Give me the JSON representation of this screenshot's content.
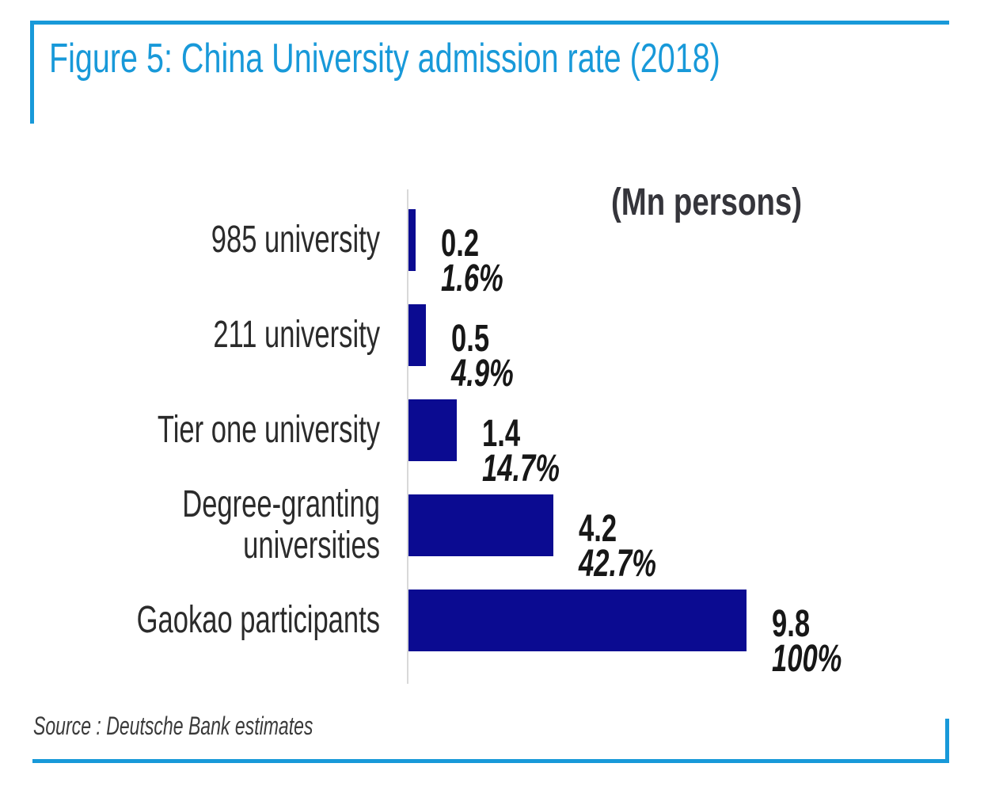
{
  "figure": {
    "title": "Figure 5: China University admission rate (2018)",
    "source_note": "Source : Deutsche Bank estimates",
    "accent_color": "#1899d9"
  },
  "chart_data": {
    "type": "bar",
    "orientation": "horizontal",
    "title": "Figure 5: China University admission rate (2018)",
    "unit_label": "(Mn persons)",
    "unit": "Mn persons",
    "categories": [
      "985 university",
      "211 university",
      "Tier one university",
      "Degree-granting universities",
      "Gaokao participants"
    ],
    "values": [
      0.2,
      0.5,
      1.4,
      4.2,
      9.8
    ],
    "value_labels": [
      "0.2",
      "0.5",
      "1.4",
      "4.2",
      "9.8"
    ],
    "percent_labels": [
      "1.6%",
      "4.9%",
      "14.7%",
      "42.7%",
      "100%"
    ],
    "xlim": [
      0,
      10
    ],
    "grid": false,
    "legend": "none",
    "value_label_position": "right-of-bar",
    "bar_color": "#0b0b91",
    "axis_color": "#d9d9d9",
    "text_color": "#2b2b2b"
  }
}
